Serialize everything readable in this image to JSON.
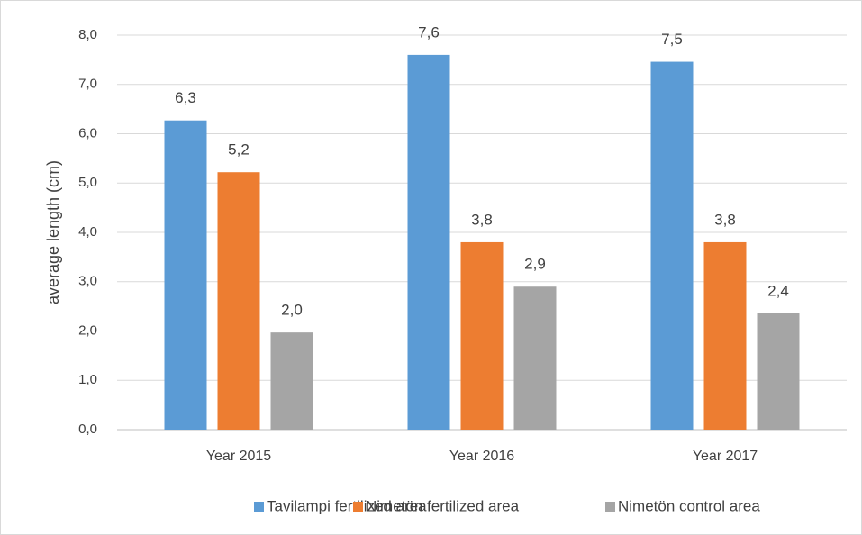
{
  "chart_data": {
    "type": "bar",
    "y_label": "average length (cm)",
    "categories": [
      "Year 2015",
      "Year 2016",
      "Year 2017"
    ],
    "series": [
      {
        "name": "Tavilampi fertilized area",
        "color": "#5b9bd5",
        "values": [
          6.27,
          7.6,
          7.46
        ],
        "value_labels": [
          "6,3",
          "7,6",
          "7,5"
        ]
      },
      {
        "name": "Nimetön fertilized area",
        "color": "#ed7d31",
        "values": [
          5.22,
          3.8,
          3.8
        ],
        "value_labels": [
          "5,2",
          "3,8",
          "3,8"
        ]
      },
      {
        "name": "Nimetön control area",
        "color": "#a5a5a5",
        "values": [
          1.97,
          2.9,
          2.36
        ],
        "value_labels": [
          "2,0",
          "2,9",
          "2,4"
        ]
      }
    ],
    "ylim": [
      0,
      8
    ],
    "yticks": [
      {
        "value": 0,
        "label": "0,0"
      },
      {
        "value": 1,
        "label": "1,0"
      },
      {
        "value": 2,
        "label": "2,0"
      },
      {
        "value": 3,
        "label": "3,0"
      },
      {
        "value": 4,
        "label": "4,0"
      },
      {
        "value": 5,
        "label": "5,0"
      },
      {
        "value": 6,
        "label": "6,0"
      },
      {
        "value": 7,
        "label": "7,0"
      },
      {
        "value": 8,
        "label": "8,0"
      }
    ],
    "grid": true,
    "legend": "bottom"
  }
}
